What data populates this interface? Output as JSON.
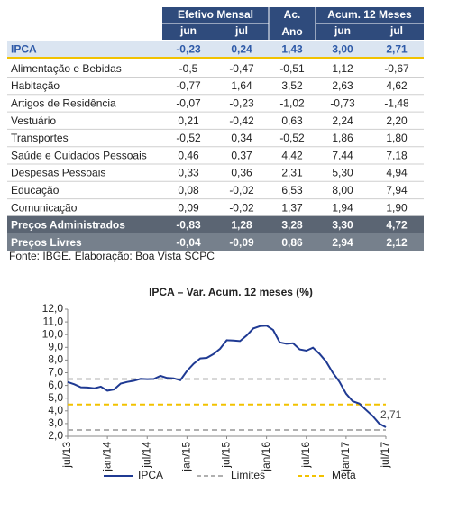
{
  "table": {
    "header": {
      "group_1": "Efetivo Mensal",
      "ac_ano": [
        "Ac.",
        "Ano"
      ],
      "group_2": "Acum. 12 Meses",
      "sub": [
        "jun",
        "jul",
        "jun",
        "jul"
      ]
    },
    "rows": [
      [
        "IPCA",
        "-0,23",
        "0,24",
        "1,43",
        "3,00",
        "2,71"
      ],
      [
        "Alimentação e Bebidas",
        "-0,5",
        "-0,47",
        "-0,51",
        "1,12",
        "-0,67"
      ],
      [
        "Habitação",
        "-0,77",
        "1,64",
        "3,52",
        "2,63",
        "4,62"
      ],
      [
        "Artigos de Residência",
        "-0,07",
        "-0,23",
        "-1,02",
        "-0,73",
        "-1,48"
      ],
      [
        "Vestuário",
        "0,21",
        "-0,42",
        "0,63",
        "2,24",
        "2,20"
      ],
      [
        "Transportes",
        "-0,52",
        "0,34",
        "-0,52",
        "1,86",
        "1,80"
      ],
      [
        "Saúde e Cuidados Pessoais",
        "0,46",
        "0,37",
        "4,42",
        "7,44",
        "7,18"
      ],
      [
        "Despesas Pessoais",
        "0,33",
        "0,36",
        "2,31",
        "5,30",
        "4,94"
      ],
      [
        "Educação",
        "0,08",
        "-0,02",
        "6,53",
        "8,00",
        "7,94"
      ],
      [
        "Comunicação",
        "0,09",
        "-0,02",
        "1,37",
        "1,94",
        "1,90"
      ],
      [
        "Preços Administrados",
        "-0,83",
        "1,28",
        "3,28",
        "3,30",
        "4,72"
      ],
      [
        "Preços Livres",
        "-0,04",
        "-0,09",
        "0,86",
        "2,94",
        "2,12"
      ]
    ],
    "source": "Fonte: IBGE. Elaboração: Boa Vista SCPC"
  },
  "chart_data": {
    "type": "line",
    "title": "IPCA – Var. Acum. 12 meses (%)",
    "categories": [
      "jul/13",
      null,
      null,
      null,
      null,
      null,
      "jan/14",
      null,
      null,
      null,
      null,
      null,
      "jul/14",
      null,
      null,
      null,
      null,
      null,
      "jan/15",
      null,
      null,
      null,
      null,
      null,
      "jul/15",
      null,
      null,
      null,
      null,
      null,
      "jan/16",
      null,
      null,
      null,
      null,
      null,
      "jul/16",
      null,
      null,
      null,
      null,
      null,
      "jan/17",
      null,
      null,
      null,
      null,
      null,
      "jul/17"
    ],
    "series": [
      {
        "name": "IPCA",
        "color": "#1f3a93",
        "values": [
          6.27,
          6.09,
          5.86,
          5.84,
          5.77,
          5.91,
          5.59,
          5.68,
          6.15,
          6.28,
          6.37,
          6.52,
          6.5,
          6.51,
          6.75,
          6.59,
          6.56,
          6.41,
          7.14,
          7.7,
          8.13,
          8.17,
          8.47,
          8.89,
          9.56,
          9.53,
          9.49,
          9.93,
          10.48,
          10.67,
          10.71,
          10.36,
          9.39,
          9.28,
          9.32,
          8.84,
          8.74,
          8.97,
          8.48,
          7.87,
          6.99,
          6.29,
          5.35,
          4.76,
          4.57,
          4.08,
          3.6,
          3.0,
          2.71
        ]
      }
    ],
    "reference_lines": [
      {
        "name": "Limites",
        "color": "#b0b0b0",
        "values": [
          6.5,
          2.5
        ]
      },
      {
        "name": "Meta",
        "color": "#f2c200",
        "values": [
          4.5
        ]
      }
    ],
    "annotation": "2,71",
    "ylim": [
      2,
      12
    ],
    "yticks": [
      {
        "value": 2,
        "label": "2,0"
      },
      {
        "value": 3,
        "label": "3,0"
      },
      {
        "value": 4,
        "label": "4,0"
      },
      {
        "value": 5,
        "label": "5,0"
      },
      {
        "value": 6,
        "label": "6,0"
      },
      {
        "value": 7,
        "label": "7,0"
      },
      {
        "value": 8,
        "label": "8,0"
      },
      {
        "value": 9,
        "label": "9,0"
      },
      {
        "value": 10,
        "label": "10,0"
      },
      {
        "value": 11,
        "label": "11,0"
      },
      {
        "value": 12,
        "label": "12,0"
      }
    ],
    "legend": "bottom"
  }
}
